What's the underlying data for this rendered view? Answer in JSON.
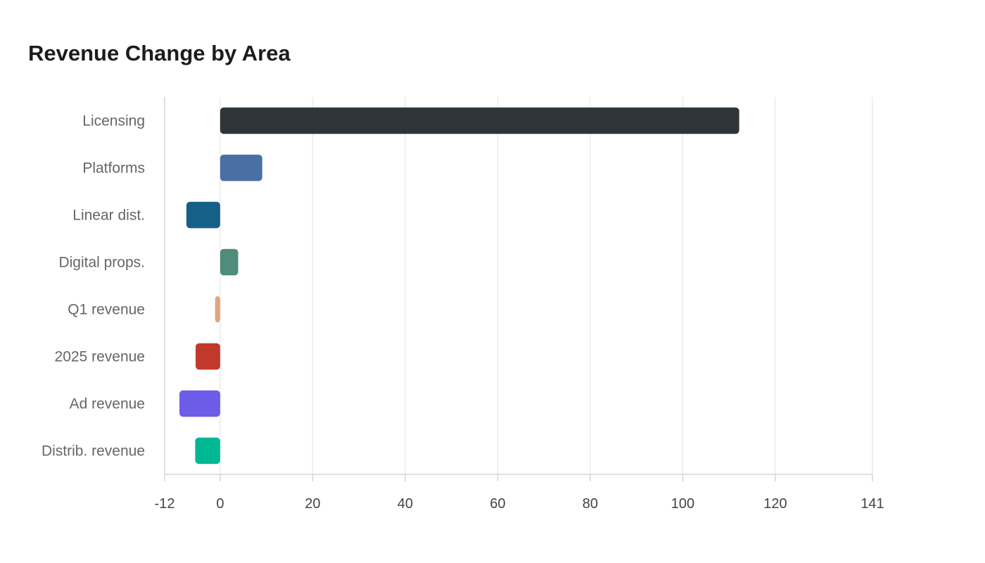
{
  "chart_data": {
    "type": "bar",
    "orientation": "horizontal",
    "title": "Revenue Change by Area",
    "xlabel": "",
    "ylabel": "",
    "xlim": [
      -12,
      141
    ],
    "xticks": [
      -12,
      0,
      20,
      40,
      60,
      80,
      100,
      120,
      141
    ],
    "grid": true,
    "categories": [
      "Licensing",
      "Platforms",
      "Linear dist.",
      "Digital props.",
      "Q1 revenue",
      "2025 revenue",
      "Ad revenue",
      "Distrib. revenue"
    ],
    "values": [
      112.2,
      9.1,
      -7.3,
      3.9,
      -1.1,
      -5.3,
      -8.8,
      -5.4
    ],
    "colors": [
      "#2e3437",
      "#4a6fa5",
      "#166088",
      "#4f8c7a",
      "#e0a77f",
      "#c0392b",
      "#6c5ce7",
      "#00b894"
    ]
  }
}
